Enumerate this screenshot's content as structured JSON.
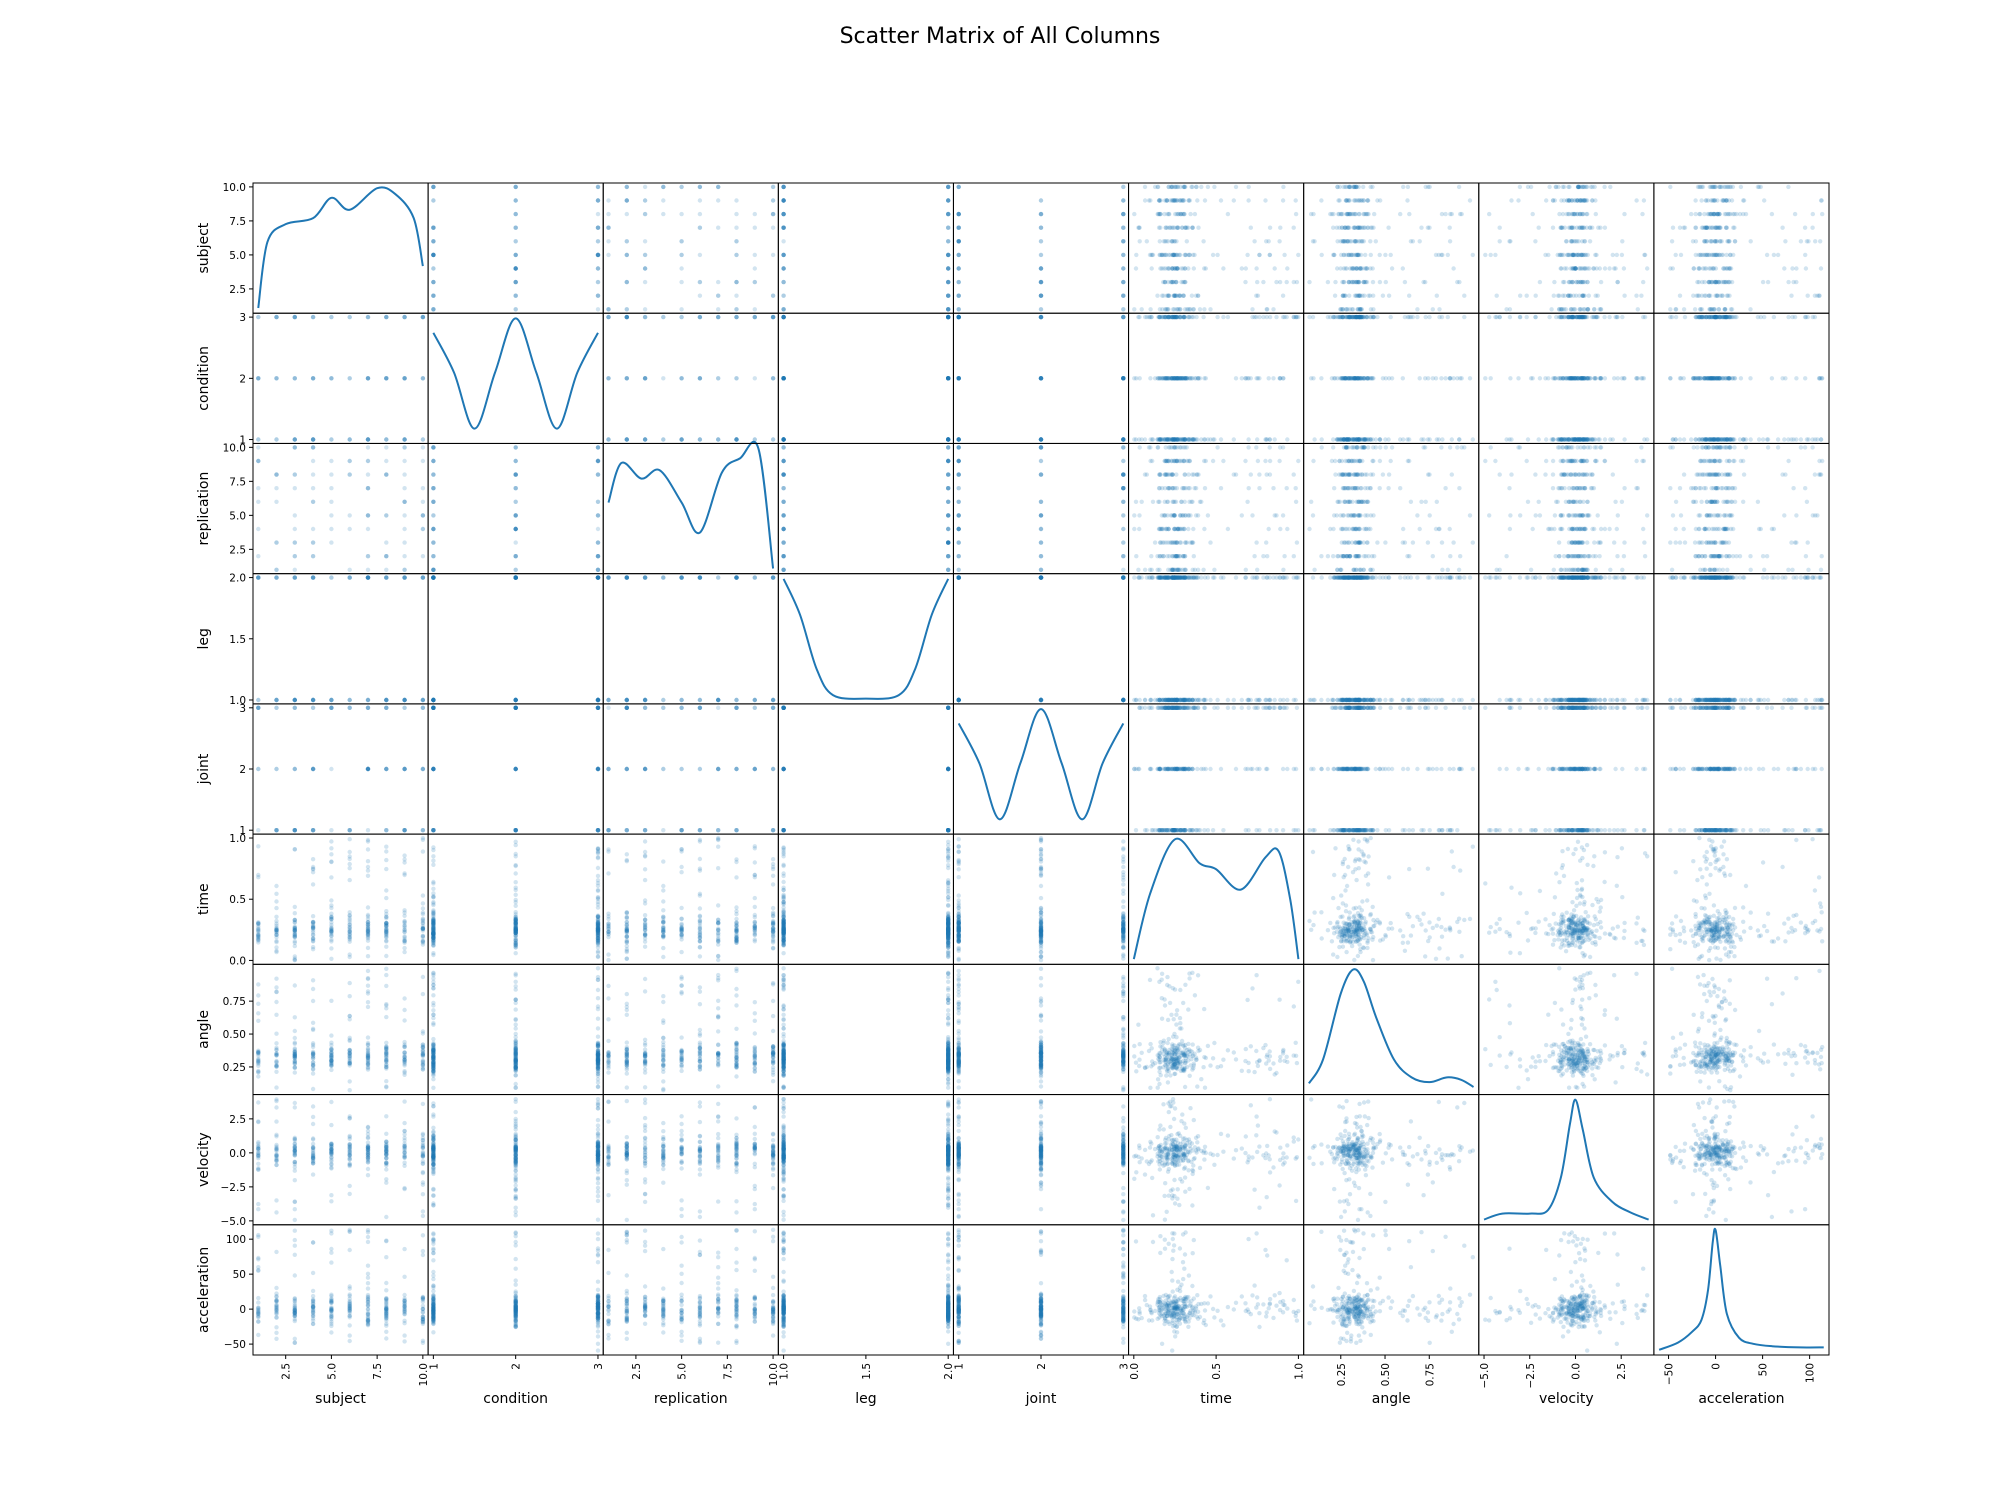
{
  "title": "Scatter Matrix of All Columns",
  "chart_data": {
    "type": "scatter",
    "subtype": "scatter-matrix",
    "title": "Scatter Matrix of All Columns",
    "diagonal": "kde",
    "marker_color": "#1f77b4",
    "marker_alpha": 0.2,
    "grid": false,
    "variables": [
      {
        "name": "subject",
        "range": [
          1,
          10
        ],
        "ticks": [
          "2.5",
          "5.0",
          "7.5",
          "10.0"
        ],
        "tick_values": [
          2.5,
          5.0,
          7.5,
          10.0
        ],
        "levels": [
          1,
          2,
          3,
          4,
          5,
          6,
          7,
          8,
          9,
          10
        ],
        "kde_x": [
          1.0,
          1.5,
          2.5,
          4.0,
          5.0,
          6.0,
          7.5,
          8.5,
          9.5,
          10.0
        ],
        "kde_y": [
          0.0,
          0.55,
          0.7,
          0.75,
          0.92,
          0.82,
          1.0,
          0.95,
          0.75,
          0.35
        ]
      },
      {
        "name": "condition",
        "range": [
          1,
          3
        ],
        "ticks": [
          "1",
          "2",
          "3"
        ],
        "tick_values": [
          1,
          2,
          3
        ],
        "levels": [
          1,
          2,
          3
        ],
        "kde_x": [
          1.0,
          1.25,
          1.5,
          1.75,
          2.0,
          2.25,
          2.5,
          2.75,
          3.0
        ],
        "kde_y": [
          0.88,
          0.55,
          0.08,
          0.55,
          1.0,
          0.55,
          0.08,
          0.55,
          0.88
        ]
      },
      {
        "name": "replication",
        "range": [
          1,
          10
        ],
        "ticks": [
          "2.5",
          "5.0",
          "7.5",
          "10.0"
        ],
        "tick_values": [
          2.5,
          5.0,
          7.5,
          10.0
        ],
        "levels": [
          1,
          2,
          3,
          4,
          5,
          6,
          7,
          8,
          9,
          10
        ],
        "kde_x": [
          1.0,
          1.7,
          2.8,
          3.8,
          5.0,
          6.0,
          7.2,
          8.2,
          9.2,
          10.0
        ],
        "kde_y": [
          0.55,
          0.88,
          0.75,
          0.82,
          0.55,
          0.3,
          0.8,
          0.92,
          1.0,
          0.0
        ]
      },
      {
        "name": "leg",
        "range": [
          1,
          2
        ],
        "ticks": [
          "1.0",
          "1.5",
          "2.0"
        ],
        "tick_values": [
          1.0,
          1.5,
          2.0
        ],
        "levels": [
          1,
          2
        ],
        "kde_x": [
          1.0,
          1.1,
          1.2,
          1.3,
          1.5,
          1.7,
          1.8,
          1.9,
          2.0
        ],
        "kde_y": [
          1.0,
          0.7,
          0.25,
          0.03,
          0.0,
          0.03,
          0.25,
          0.7,
          1.0
        ]
      },
      {
        "name": "joint",
        "range": [
          1,
          3
        ],
        "ticks": [
          "1",
          "2",
          "3"
        ],
        "tick_values": [
          1,
          2,
          3
        ],
        "levels": [
          1,
          2,
          3
        ],
        "kde_x": [
          1.0,
          1.25,
          1.5,
          1.75,
          2.0,
          2.25,
          2.5,
          2.75,
          3.0
        ],
        "kde_y": [
          0.88,
          0.55,
          0.08,
          0.55,
          1.0,
          0.55,
          0.08,
          0.55,
          0.88
        ]
      },
      {
        "name": "time",
        "range": [
          0,
          1
        ],
        "ticks": [
          "0.0",
          "0.5",
          "1.0"
        ],
        "tick_values": [
          0.0,
          0.5,
          1.0
        ],
        "levels": null,
        "kde_x": [
          0.0,
          0.1,
          0.25,
          0.4,
          0.5,
          0.65,
          0.8,
          0.88,
          0.95,
          1.0
        ],
        "kde_y": [
          0.0,
          0.55,
          1.0,
          0.8,
          0.75,
          0.58,
          0.85,
          0.9,
          0.5,
          0.0
        ]
      },
      {
        "name": "angle",
        "range": [
          0.07,
          1.0
        ],
        "ticks": [
          "0.25",
          "0.50",
          "0.75"
        ],
        "tick_values": [
          0.25,
          0.5,
          0.75
        ],
        "levels": null,
        "kde_x": [
          0.07,
          0.15,
          0.25,
          0.32,
          0.38,
          0.45,
          0.55,
          0.65,
          0.75,
          0.85,
          0.93,
          1.0
        ],
        "kde_y": [
          0.05,
          0.25,
          0.8,
          1.0,
          0.9,
          0.6,
          0.25,
          0.1,
          0.06,
          0.1,
          0.08,
          0.02
        ]
      },
      {
        "name": "velocity",
        "range": [
          -5,
          4
        ],
        "ticks": [
          "−5.0",
          "−2.5",
          "0.0",
          "2.5"
        ],
        "tick_values": [
          -5.0,
          -2.5,
          0.0,
          2.5
        ],
        "levels": null,
        "kde_x": [
          -5.0,
          -4.0,
          -2.5,
          -1.5,
          -0.8,
          -0.3,
          0.0,
          0.4,
          1.0,
          2.0,
          3.0,
          4.0
        ],
        "kde_y": [
          0.0,
          0.05,
          0.05,
          0.08,
          0.35,
          0.8,
          1.0,
          0.75,
          0.35,
          0.15,
          0.06,
          0.0
        ]
      },
      {
        "name": "acceleration",
        "range": [
          -60,
          115
        ],
        "ticks": [
          "−50",
          "0",
          "50",
          "100"
        ],
        "tick_values": [
          -50,
          0,
          50,
          100
        ],
        "levels": null,
        "kde_x": [
          -60,
          -40,
          -25,
          -15,
          -8,
          -3,
          0,
          5,
          12,
          25,
          40,
          60,
          90,
          115
        ],
        "kde_y": [
          0.0,
          0.06,
          0.15,
          0.25,
          0.5,
          0.9,
          1.0,
          0.7,
          0.3,
          0.1,
          0.05,
          0.03,
          0.02,
          0.02
        ]
      }
    ]
  }
}
